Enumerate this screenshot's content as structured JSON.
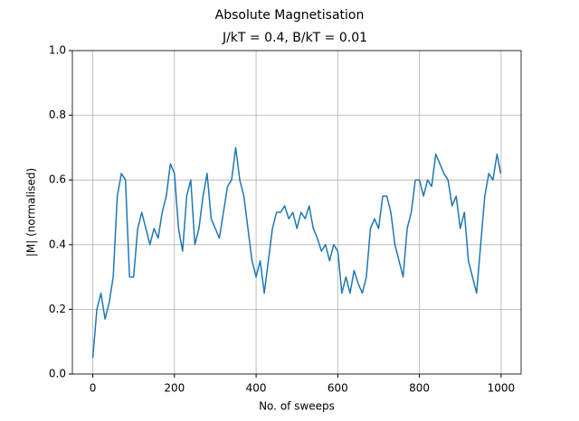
{
  "chart_data": {
    "type": "line",
    "title": "Absolute Magnetisation",
    "subtitle": "J/kT = 0.4, B/kT = 0.01",
    "x_label": "No. of sweeps",
    "y_label": "|M| (normalised)",
    "x": [
      0,
      10,
      20,
      30,
      40,
      50,
      60,
      70,
      80,
      90,
      100,
      110,
      120,
      130,
      140,
      150,
      160,
      170,
      180,
      190,
      200,
      210,
      220,
      230,
      240,
      250,
      260,
      270,
      280,
      290,
      300,
      310,
      320,
      330,
      340,
      350,
      360,
      370,
      380,
      390,
      400,
      410,
      420,
      430,
      440,
      450,
      460,
      470,
      480,
      490,
      500,
      510,
      520,
      530,
      540,
      550,
      560,
      570,
      580,
      590,
      600,
      610,
      620,
      630,
      640,
      650,
      660,
      670,
      680,
      690,
      700,
      710,
      720,
      730,
      740,
      750,
      760,
      770,
      780,
      790,
      800,
      810,
      820,
      830,
      840,
      850,
      860,
      870,
      880,
      890,
      900,
      910,
      920,
      930,
      940,
      950,
      960,
      970,
      980,
      990,
      999
    ],
    "series": [
      {
        "name": "|M|",
        "color": "#1f77b4",
        "values": [
          0.05,
          0.2,
          0.25,
          0.17,
          0.22,
          0.3,
          0.55,
          0.62,
          0.6,
          0.3,
          0.3,
          0.45,
          0.5,
          0.45,
          0.4,
          0.45,
          0.42,
          0.5,
          0.55,
          0.65,
          0.62,
          0.45,
          0.38,
          0.55,
          0.6,
          0.4,
          0.45,
          0.55,
          0.62,
          0.48,
          0.45,
          0.42,
          0.5,
          0.58,
          0.6,
          0.7,
          0.6,
          0.55,
          0.45,
          0.35,
          0.3,
          0.35,
          0.25,
          0.35,
          0.45,
          0.5,
          0.5,
          0.52,
          0.48,
          0.5,
          0.45,
          0.5,
          0.48,
          0.52,
          0.45,
          0.42,
          0.38,
          0.4,
          0.35,
          0.4,
          0.38,
          0.25,
          0.3,
          0.25,
          0.32,
          0.28,
          0.25,
          0.3,
          0.45,
          0.48,
          0.45,
          0.55,
          0.55,
          0.5,
          0.4,
          0.35,
          0.3,
          0.45,
          0.5,
          0.6,
          0.6,
          0.55,
          0.6,
          0.58,
          0.68,
          0.65,
          0.62,
          0.6,
          0.52,
          0.55,
          0.45,
          0.5,
          0.35,
          0.3,
          0.25,
          0.4,
          0.55,
          0.62,
          0.6,
          0.68,
          0.62
        ]
      }
    ],
    "xlim": [
      -50,
      1049
    ],
    "ylim": [
      0,
      1
    ],
    "xticks": [
      0,
      200,
      400,
      600,
      800,
      1000
    ],
    "yticks": [
      {
        "value": 0,
        "label": "0.0"
      },
      {
        "value": 0.2,
        "label": "0.2"
      },
      {
        "value": 0.4,
        "label": "0.4"
      },
      {
        "value": 0.6,
        "label": "0.6"
      },
      {
        "value": 0.8,
        "label": "0.8"
      },
      {
        "value": 1,
        "label": "1.0"
      }
    ],
    "grid": true
  }
}
